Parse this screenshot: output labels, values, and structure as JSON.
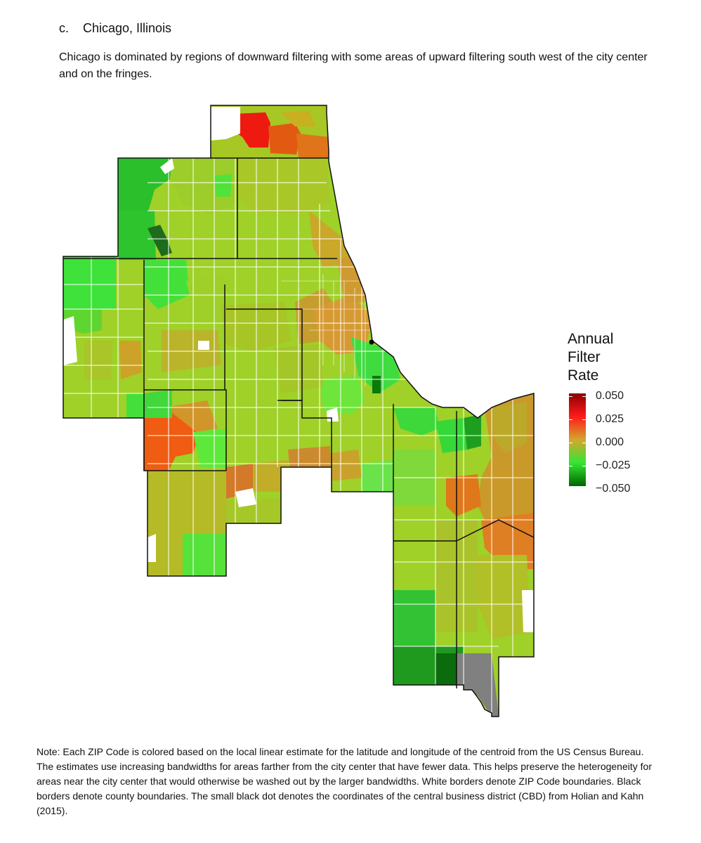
{
  "section": {
    "letter": "c.",
    "title": "Chicago, Illinois"
  },
  "intro": "Chicago is dominated by regions of downward filtering with some areas of upward filtering south west of the city center and on the fringes.",
  "legend": {
    "title_lines": [
      "Annual",
      "Filter",
      "Rate"
    ],
    "ticks": [
      "0.050",
      "0.025",
      "0.000",
      "−0.025",
      "−0.050"
    ]
  },
  "note": "Note: Each ZIP Code is colored based on the local linear estimate for the latitude and longitude of the centroid from the US Census Bureau. The estimates use increasing bandwidths for areas farther from the city center that have fewer data. This helps preserve the heterogeneity for areas near the city center that would otherwise be washed out by the larger bandwidths. White borders denote ZIP Code boundaries. Black borders denote county boundaries. The small black dot denotes the coordinates of the central business district (CBD) from Holian and Kahn (2015).",
  "colors": {
    "high": "#8b0000",
    "mid_high": "#ff1a1a",
    "zero": "#d4a72c",
    "mid_low": "#33e633",
    "low": "#006400",
    "no_data": "#808080"
  }
}
